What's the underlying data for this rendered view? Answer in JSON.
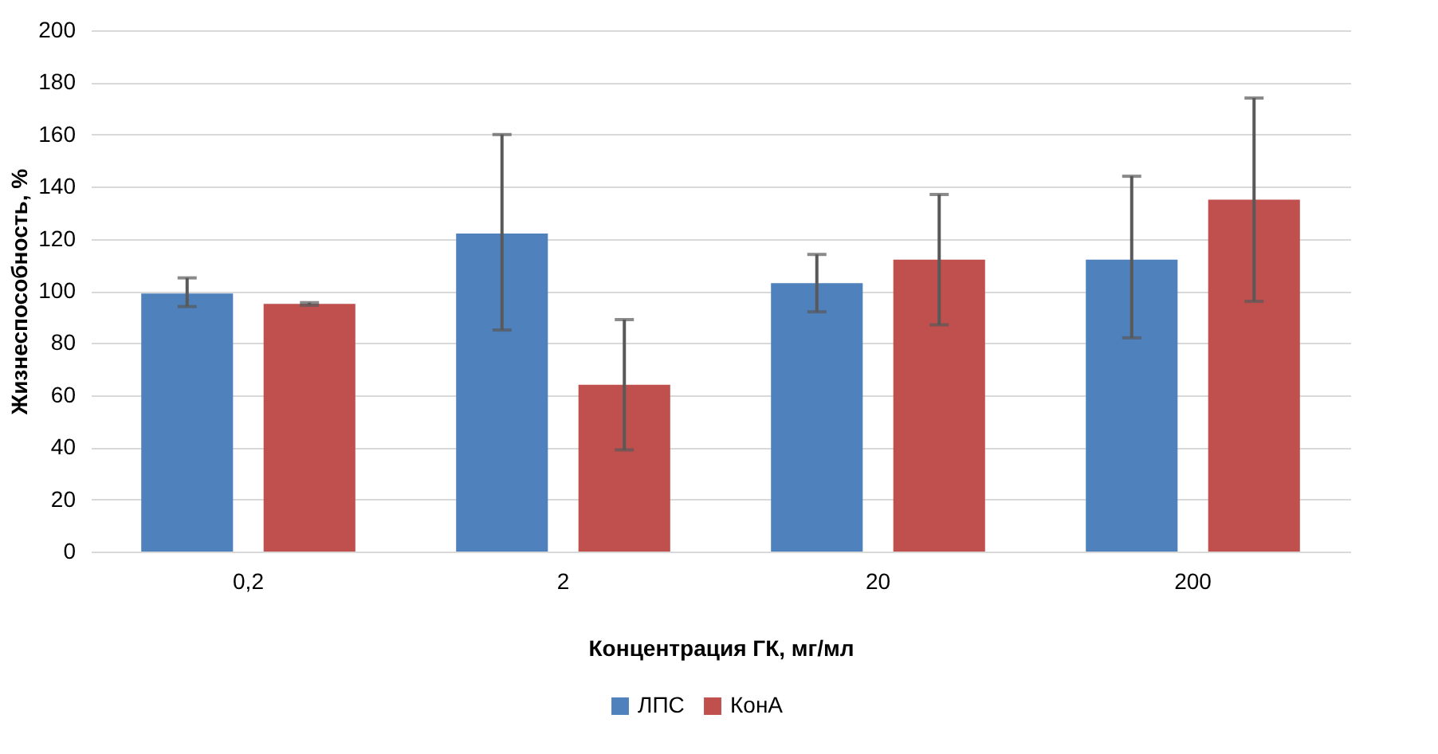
{
  "chart_data": {
    "type": "bar",
    "xlabel": "Концентрация ГК, мг/мл",
    "ylabel": "Жизнеспособность, %",
    "categories": [
      "0,2",
      "2",
      "20",
      "200"
    ],
    "series": [
      {
        "name": "ЛПС",
        "color": "#4f81bd",
        "values": [
          99,
          122,
          103,
          112
        ],
        "errors": [
          [
            94,
            105
          ],
          [
            85,
            160
          ],
          [
            92,
            114
          ],
          [
            82,
            144
          ]
        ]
      },
      {
        "name": "КонА",
        "color": "#c0504d",
        "values": [
          95,
          64,
          112,
          135
        ],
        "errors": [
          [
            94.5,
            95.5
          ],
          [
            39,
            89
          ],
          [
            87,
            137
          ],
          [
            96,
            174
          ]
        ]
      }
    ],
    "ylim": [
      0,
      200
    ],
    "yticks": [
      0,
      20,
      40,
      60,
      80,
      100,
      120,
      140,
      160,
      180,
      200
    ],
    "grid": "y",
    "legend": "bottom"
  }
}
